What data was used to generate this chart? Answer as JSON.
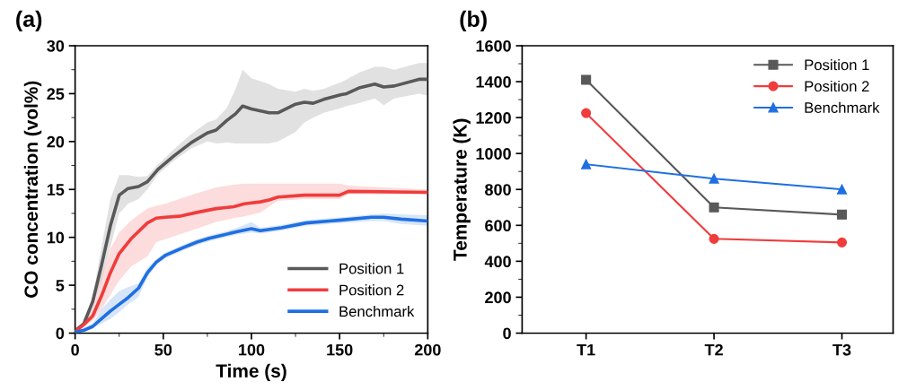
{
  "chart_data": [
    {
      "type": "line",
      "title": "(a)",
      "xlabel": "Time (s)",
      "ylabel": "CO concentration (vol%)",
      "xlim": [
        0,
        200
      ],
      "xticks": [
        0,
        50,
        100,
        150,
        200
      ],
      "ylim": [
        0,
        30
      ],
      "yticks": [
        0,
        5,
        10,
        15,
        20,
        25,
        30
      ],
      "legend": "bottom right",
      "grid": false,
      "series": [
        {
          "name": "Position 1",
          "color": "#595959",
          "x": [
            0,
            5,
            10,
            15,
            20,
            25,
            30,
            36,
            41,
            47,
            56,
            66,
            75,
            80,
            86,
            91,
            95,
            100,
            110,
            115,
            125,
            130,
            135,
            141,
            151,
            154,
            161,
            170,
            175,
            181,
            195,
            200
          ],
          "values": [
            0.25,
            1.0,
            3.3,
            7.1,
            11.2,
            14.4,
            15.1,
            15.3,
            15.8,
            17.1,
            18.5,
            19.9,
            20.9,
            21.2,
            22.2,
            22.9,
            23.7,
            23.4,
            23.0,
            23.0,
            23.9,
            24.1,
            24.0,
            24.4,
            24.9,
            25.0,
            25.6,
            26.0,
            25.7,
            25.8,
            26.5,
            26.5
          ],
          "lower": [
            0.15,
            0.8,
            2.8,
            5.5,
            9,
            12.5,
            13.5,
            14,
            15,
            16.6,
            18,
            19.3,
            20,
            19.8,
            19.9,
            19.8,
            19.8,
            19.8,
            19.8,
            20.0,
            21.0,
            22.0,
            22.5,
            23.0,
            23.5,
            23.7,
            24.0,
            24.5,
            23.8,
            24.5,
            25.0,
            24.8
          ],
          "upper": [
            0.35,
            1.2,
            3.8,
            9,
            14,
            16.5,
            16.5,
            16.3,
            16.4,
            17.6,
            19.2,
            20.8,
            22,
            22.3,
            23.5,
            25.5,
            27.5,
            26.6,
            26.0,
            25.5,
            25.2,
            25.5,
            25.3,
            25.5,
            26.2,
            26.5,
            27.2,
            27.8,
            27.8,
            27.5,
            28.2,
            28.2
          ]
        },
        {
          "name": "Position 2",
          "color": "#f03c3c",
          "x": [
            0,
            5,
            10,
            15,
            20,
            25,
            32,
            41,
            46,
            51,
            59,
            69,
            80,
            90,
            96,
            105,
            110,
            115,
            130,
            150,
            155,
            200
          ],
          "values": [
            0.15,
            0.9,
            1.8,
            3.9,
            6.3,
            8.3,
            9.9,
            11.5,
            12.0,
            12.1,
            12.2,
            12.6,
            13.0,
            13.2,
            13.5,
            13.7,
            13.9,
            14.2,
            14.4,
            14.4,
            14.8,
            14.7
          ],
          "lower": [
            0.1,
            0.7,
            1.3,
            2.5,
            4,
            5.5,
            7,
            8,
            9.5,
            9.8,
            10.3,
            10.9,
            11.6,
            12.0,
            12.2,
            12.6,
            13.2,
            13.8,
            14.0,
            14.0,
            14.5,
            14.5
          ],
          "upper": [
            0.3,
            1.2,
            2.6,
            5.8,
            8.8,
            10.5,
            11.8,
            13,
            13.3,
            13.5,
            14,
            14.6,
            15.2,
            15.5,
            15.6,
            15.6,
            15.6,
            15.6,
            15.6,
            15.6,
            15.4,
            15.0
          ]
        },
        {
          "name": "Benchmark",
          "color": "#1f6fe0",
          "x": [
            0,
            5,
            10,
            15,
            20,
            25,
            30,
            36,
            41,
            46,
            51,
            56,
            61,
            69,
            76,
            83,
            92,
            100,
            105,
            117,
            131,
            144,
            151,
            168,
            175,
            185,
            200
          ],
          "values": [
            0.1,
            0.3,
            0.7,
            1.5,
            2.3,
            3.0,
            3.7,
            4.7,
            6.3,
            7.4,
            8.1,
            8.5,
            8.9,
            9.5,
            9.9,
            10.2,
            10.6,
            10.9,
            10.7,
            11.0,
            11.5,
            11.7,
            11.8,
            12.1,
            12.1,
            11.9,
            11.7
          ],
          "lower": [
            0.05,
            0.2,
            0.5,
            1.0,
            1.5,
            2.2,
            3.0,
            3.8,
            5.8,
            7.1,
            7.8,
            8.2,
            8.6,
            9.2,
            9.6,
            9.9,
            10.3,
            10.5,
            10.4,
            10.7,
            11.2,
            11.4,
            11.5,
            11.7,
            11.7,
            11.4,
            11.2
          ],
          "upper": [
            0.2,
            0.5,
            1.0,
            2.5,
            3.5,
            4.4,
            4.8,
            5.2,
            6.8,
            7.7,
            8.4,
            8.8,
            9.2,
            9.8,
            10.2,
            10.5,
            11.0,
            11.6,
            11.0,
            11.3,
            11.8,
            12.0,
            12.1,
            12.4,
            12.5,
            12.4,
            12.3
          ]
        }
      ]
    },
    {
      "type": "line",
      "title": "(b)",
      "ylabel": "Temperature (K)",
      "categories": [
        "T1",
        "T2",
        "T3"
      ],
      "ylim": [
        0,
        1600
      ],
      "yticks": [
        0,
        200,
        400,
        600,
        800,
        1000,
        1200,
        1400,
        1600
      ],
      "legend": "top right",
      "grid": false,
      "series": [
        {
          "name": "Position 1",
          "color": "#595959",
          "marker": "square",
          "values": [
            1410,
            700,
            660
          ]
        },
        {
          "name": "Position 2",
          "color": "#f03c3c",
          "marker": "circle",
          "values": [
            1225,
            525,
            505
          ]
        },
        {
          "name": "Benchmark",
          "color": "#1f6fe0",
          "marker": "triangle",
          "values": [
            940,
            860,
            800
          ]
        }
      ]
    }
  ]
}
